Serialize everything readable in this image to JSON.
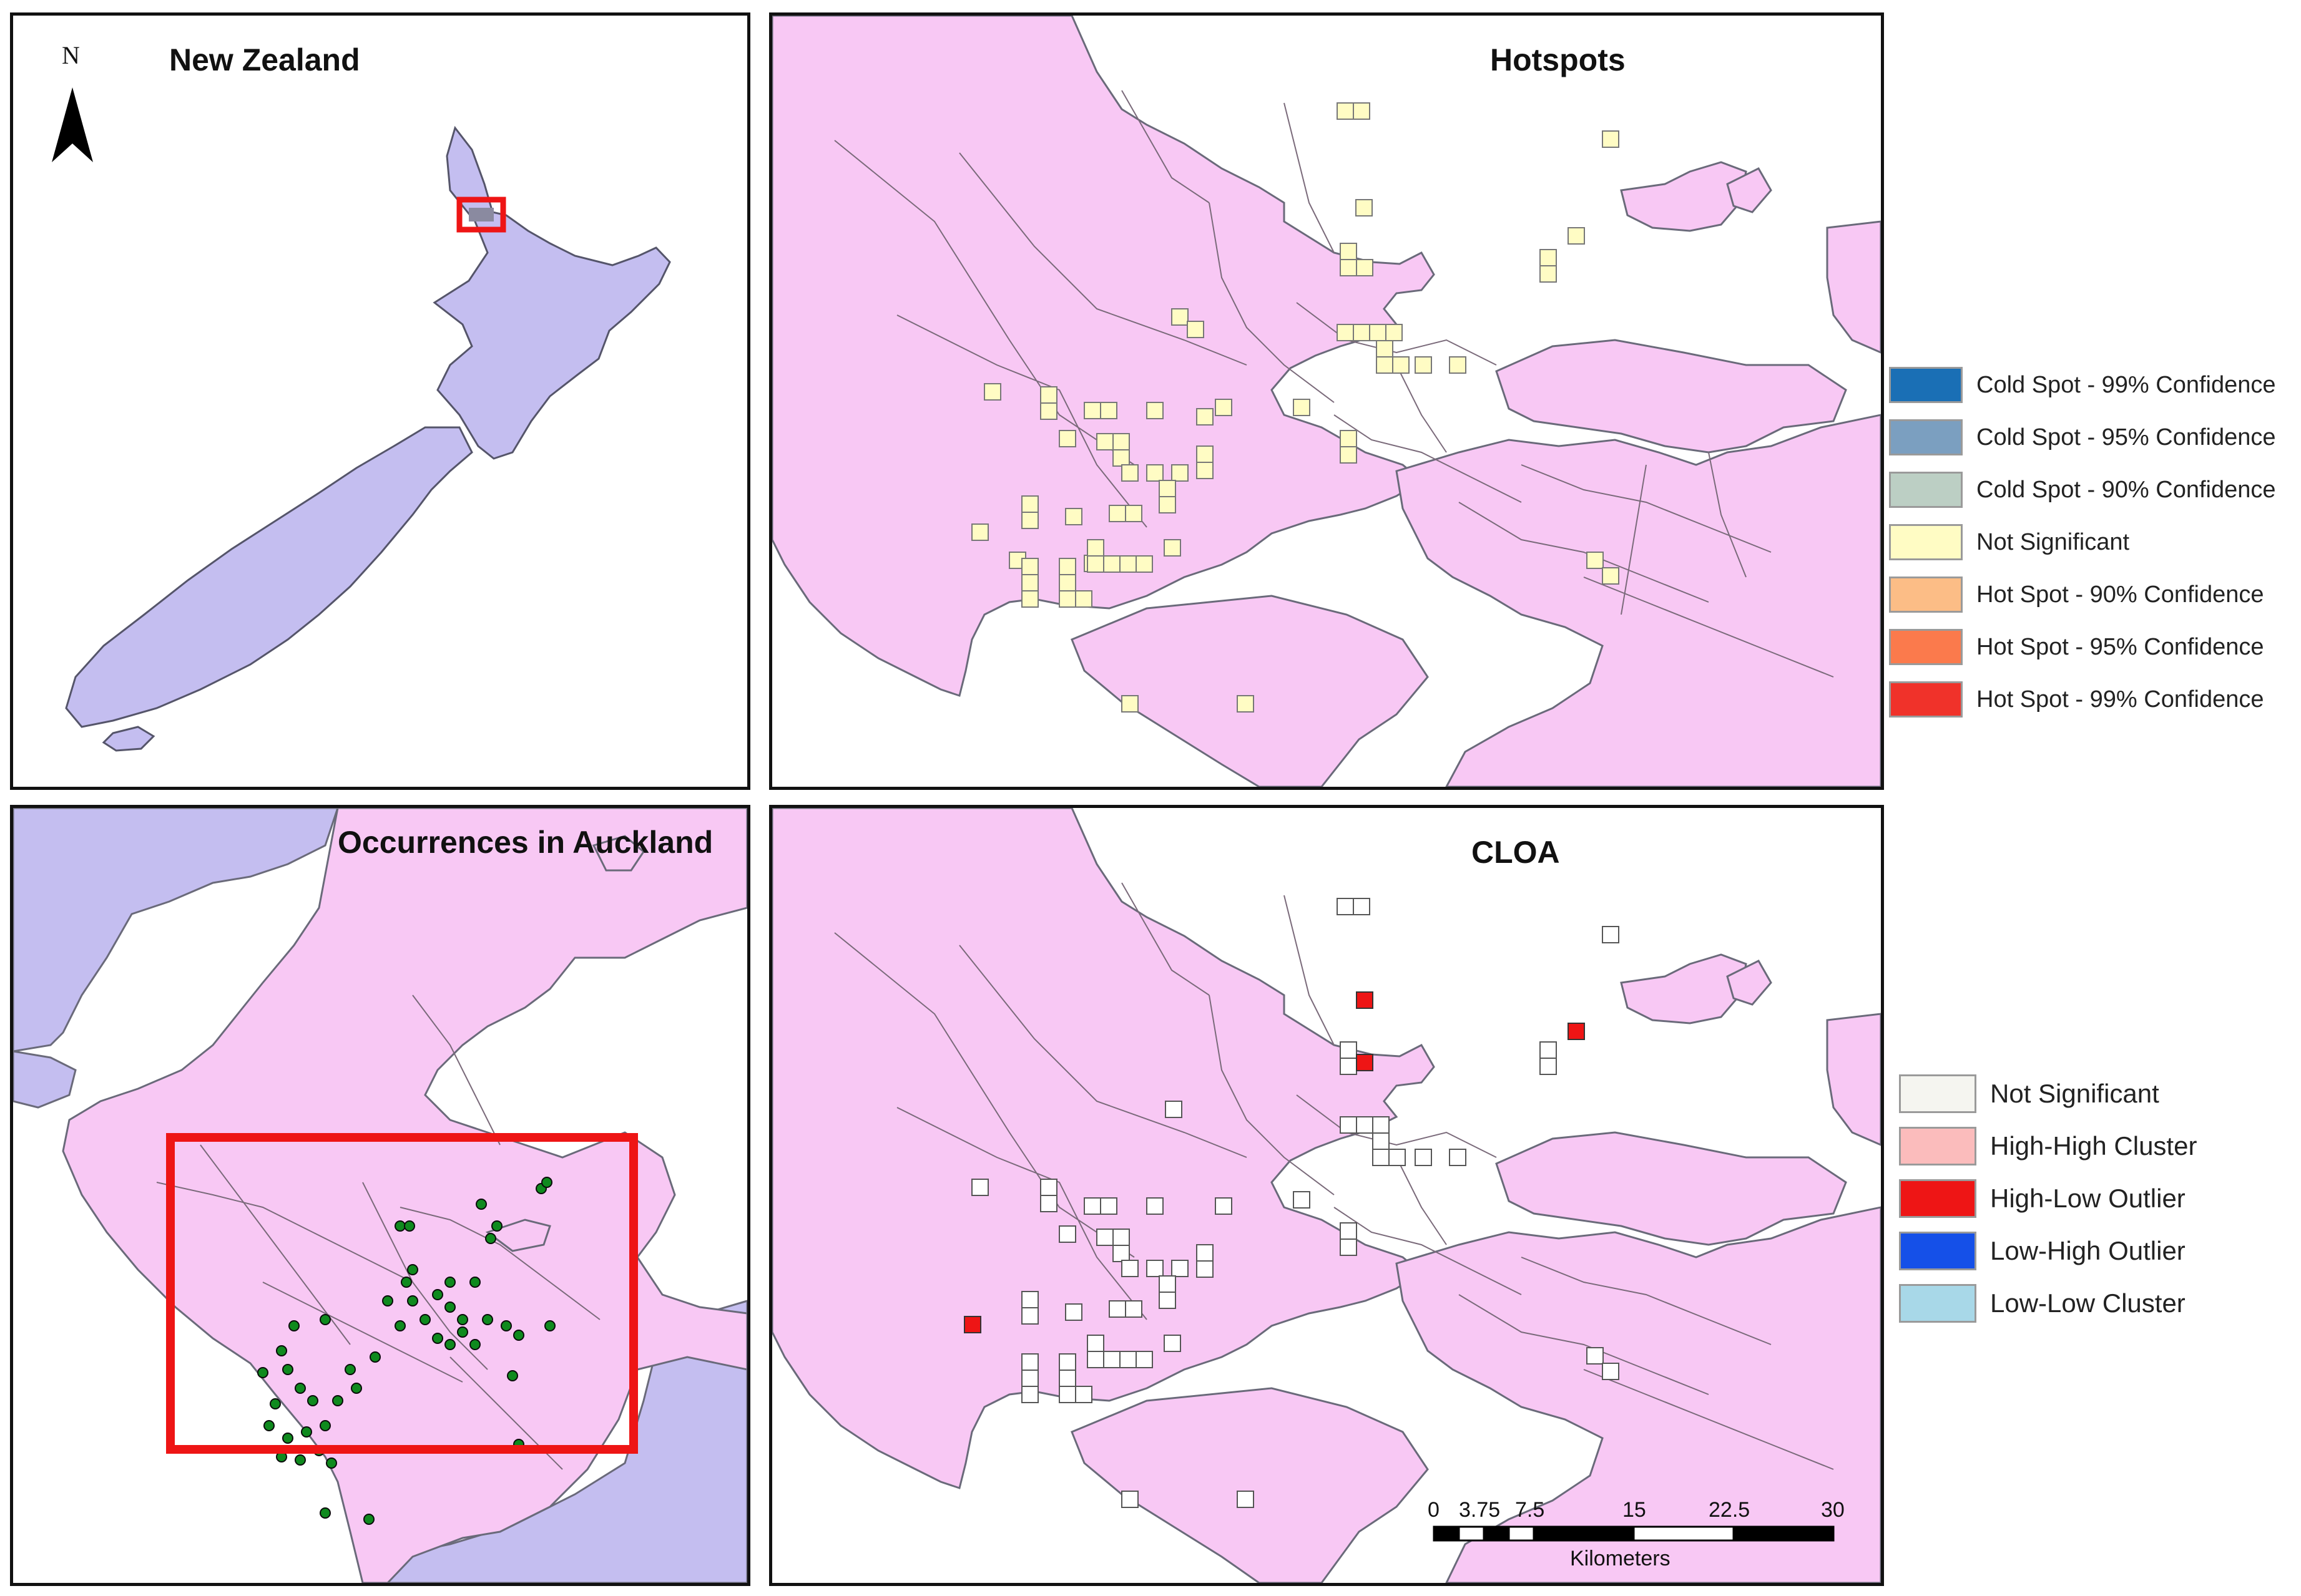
{
  "panels": {
    "nz": {
      "title": "New Zealand",
      "north_label": "N"
    },
    "hotspots": {
      "title": "Hotspots"
    },
    "occurrences": {
      "title": "Occurrences in Auckland"
    },
    "cloa": {
      "title": "CLOA"
    }
  },
  "colors": {
    "land_outside": "#c4bef0",
    "auckland_land": "#f8c8f4",
    "boundary": "#6a6a7a",
    "hotspot_cell": "#fffcc4",
    "cloa_cell": "#ffffff",
    "high_low_outlier": "#ee1515",
    "occurrence_point": "#0f8a1e",
    "highlight_frame": "#ee1515"
  },
  "hotspot_legend": [
    {
      "label": "Cold Spot - 99% Confidence",
      "color": "#1a6fb5"
    },
    {
      "label": "Cold Spot - 95% Confidence",
      "color": "#7b9fc0"
    },
    {
      "label": "Cold Spot - 90% Confidence",
      "color": "#bccfc4"
    },
    {
      "label": "Not Significant",
      "color": "#fffcc4"
    },
    {
      "label": "Hot Spot - 90% Confidence",
      "color": "#fcbd86"
    },
    {
      "label": "Hot Spot - 95% Confidence",
      "color": "#fb7a4c"
    },
    {
      "label": "Hot Spot - 99% Confidence",
      "color": "#f0322a"
    }
  ],
  "cloa_legend": [
    {
      "label": "Not Significant",
      "color": "#f5f5f0"
    },
    {
      "label": "High-High Cluster",
      "color": "#fbbcbc"
    },
    {
      "label": "High-Low Outlier",
      "color": "#ee1515"
    },
    {
      "label": "Low-High Outlier",
      "color": "#1550e8"
    },
    {
      "label": "Low-Low Cluster",
      "color": "#a8d8e8"
    }
  ],
  "scale_bar": {
    "ticks": [
      "0",
      "3.75",
      "7.5",
      "15",
      "22.5",
      "30"
    ],
    "unit": "Kilometers"
  }
}
